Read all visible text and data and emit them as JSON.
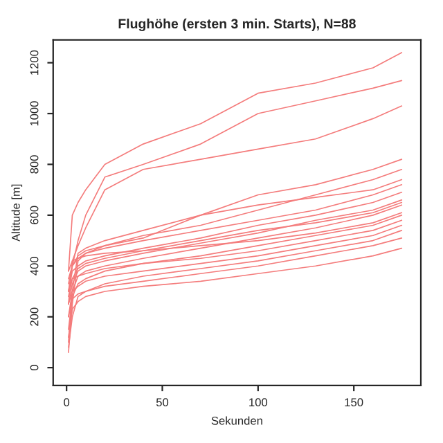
{
  "chart_data": {
    "type": "line",
    "title": "Flughöhe (ersten 3 min. Starts), N=88",
    "xlabel": "Sekunden",
    "ylabel": "Altitude [m]",
    "x": [
      1,
      3,
      6,
      10,
      20,
      40,
      70,
      100,
      130,
      160,
      175
    ],
    "xlim": [
      -7,
      185
    ],
    "ylim": [
      -70,
      1290
    ],
    "xticks": [
      0,
      50,
      100,
      150
    ],
    "yticks": [
      0,
      200,
      400,
      600,
      800,
      1000,
      1200
    ],
    "grid": false,
    "marker": "none",
    "line_style": "solid",
    "series": [
      {
        "color": "#f47c7c",
        "values": [
          380,
          600,
          650,
          700,
          800,
          880,
          960,
          1080,
          1120,
          1180,
          1240
        ]
      },
      {
        "color": "#f47c7c",
        "values": [
          300,
          400,
          500,
          600,
          750,
          800,
          880,
          1000,
          1050,
          1100,
          1130
        ]
      },
      {
        "color": "#f47c7c",
        "values": [
          250,
          420,
          480,
          550,
          700,
          780,
          820,
          860,
          900,
          980,
          1030
        ]
      },
      {
        "color": "#f47c7c",
        "values": [
          100,
          300,
          450,
          470,
          500,
          540,
          600,
          680,
          720,
          780,
          820
        ]
      },
      {
        "color": "#f47c7c",
        "values": [
          60,
          250,
          420,
          450,
          480,
          520,
          560,
          620,
          680,
          740,
          780
        ]
      },
      {
        "color": "#f47c7c",
        "values": [
          350,
          400,
          430,
          450,
          470,
          500,
          540,
          580,
          620,
          680,
          720
        ]
      },
      {
        "color": "#f47c7c",
        "values": [
          300,
          380,
          400,
          420,
          440,
          470,
          510,
          560,
          600,
          650,
          690
        ]
      },
      {
        "color": "#f47c7c",
        "values": [
          250,
          330,
          380,
          400,
          420,
          450,
          490,
          530,
          580,
          620,
          660
        ]
      },
      {
        "color": "#f47c7c",
        "values": [
          200,
          300,
          360,
          380,
          400,
          430,
          470,
          510,
          550,
          600,
          640
        ]
      },
      {
        "color": "#f47c7c",
        "values": [
          380,
          420,
          430,
          440,
          450,
          460,
          480,
          500,
          530,
          570,
          610
        ]
      },
      {
        "color": "#f47c7c",
        "values": [
          150,
          280,
          330,
          350,
          380,
          410,
          440,
          480,
          520,
          560,
          600
        ]
      },
      {
        "color": "#f47c7c",
        "values": [
          300,
          350,
          360,
          370,
          390,
          410,
          430,
          460,
          500,
          540,
          580
        ]
      },
      {
        "color": "#f47c7c",
        "values": [
          250,
          300,
          320,
          340,
          360,
          380,
          410,
          440,
          480,
          520,
          560
        ]
      },
      {
        "color": "#f47c7c",
        "values": [
          80,
          200,
          280,
          300,
          330,
          360,
          390,
          420,
          460,
          500,
          540
        ]
      },
      {
        "color": "#f47c7c",
        "values": [
          200,
          270,
          290,
          300,
          320,
          340,
          370,
          400,
          440,
          480,
          510
        ]
      },
      {
        "color": "#f47c7c",
        "values": [
          120,
          230,
          260,
          280,
          300,
          320,
          340,
          370,
          400,
          440,
          470
        ]
      },
      {
        "color": "#f47c7c",
        "values": [
          330,
          400,
          440,
          460,
          480,
          510,
          600,
          640,
          670,
          700,
          740
        ]
      },
      {
        "color": "#f47c7c",
        "values": [
          280,
          350,
          390,
          410,
          430,
          460,
          500,
          540,
          570,
          610,
          650
        ]
      }
    ]
  }
}
